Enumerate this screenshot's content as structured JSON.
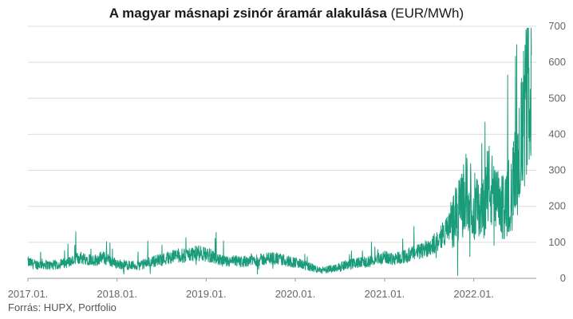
{
  "chart_data": {
    "type": "line",
    "title": "A magyar másnapi zsinór áramár alakulása",
    "title_unit": "(EUR/MWh)",
    "xlabel": "",
    "ylabel": "",
    "x_ticks": [
      "2017.01.",
      "2018.01.",
      "2019.01.",
      "2020.01.",
      "2021.01.",
      "2022.01."
    ],
    "y_ticks": [
      0,
      100,
      200,
      300,
      400,
      500,
      600,
      700
    ],
    "ylim": [
      0,
      700
    ],
    "xlim": [
      "2017-01-01",
      "2022-09-01"
    ],
    "grid": true,
    "legend": "none",
    "series": [
      {
        "color": "#1a9c7a",
        "points": [
          [
            "2017-01-01",
            45
          ],
          [
            "2017-02-01",
            38
          ],
          [
            "2017-03-01",
            40
          ],
          [
            "2017-04-01",
            36
          ],
          [
            "2017-05-01",
            38
          ],
          [
            "2017-06-01",
            42
          ],
          [
            "2017-07-01",
            48
          ],
          [
            "2017-08-01",
            58
          ],
          [
            "2017-09-01",
            55
          ],
          [
            "2017-10-01",
            50
          ],
          [
            "2017-11-01",
            58
          ],
          [
            "2017-12-01",
            50
          ],
          [
            "2018-01-01",
            40
          ],
          [
            "2018-02-01",
            38
          ],
          [
            "2018-03-01",
            36
          ],
          [
            "2018-04-01",
            35
          ],
          [
            "2018-05-01",
            42
          ],
          [
            "2018-06-01",
            48
          ],
          [
            "2018-07-01",
            52
          ],
          [
            "2018-08-01",
            58
          ],
          [
            "2018-09-01",
            64
          ],
          [
            "2018-10-01",
            62
          ],
          [
            "2018-11-01",
            68
          ],
          [
            "2018-12-01",
            70
          ],
          [
            "2019-01-01",
            66
          ],
          [
            "2019-02-01",
            60
          ],
          [
            "2019-03-01",
            48
          ],
          [
            "2019-04-01",
            45
          ],
          [
            "2019-05-01",
            48
          ],
          [
            "2019-06-01",
            46
          ],
          [
            "2019-07-01",
            52
          ],
          [
            "2019-08-01",
            50
          ],
          [
            "2019-09-01",
            54
          ],
          [
            "2019-10-01",
            56
          ],
          [
            "2019-11-01",
            52
          ],
          [
            "2019-12-01",
            48
          ],
          [
            "2020-01-01",
            44
          ],
          [
            "2020-02-01",
            38
          ],
          [
            "2020-03-01",
            32
          ],
          [
            "2020-04-01",
            24
          ],
          [
            "2020-05-01",
            22
          ],
          [
            "2020-06-01",
            28
          ],
          [
            "2020-07-01",
            32
          ],
          [
            "2020-08-01",
            38
          ],
          [
            "2020-09-01",
            42
          ],
          [
            "2020-10-01",
            44
          ],
          [
            "2020-11-01",
            46
          ],
          [
            "2020-12-01",
            54
          ],
          [
            "2021-01-01",
            58
          ],
          [
            "2021-02-01",
            55
          ],
          [
            "2021-03-01",
            58
          ],
          [
            "2021-04-01",
            62
          ],
          [
            "2021-05-01",
            70
          ],
          [
            "2021-06-01",
            76
          ],
          [
            "2021-07-01",
            88
          ],
          [
            "2021-08-01",
            100
          ],
          [
            "2021-09-01",
            125
          ],
          [
            "2021-10-01",
            155
          ],
          [
            "2021-11-01",
            185
          ],
          [
            "2021-12-01",
            240
          ],
          [
            "2022-01-01",
            205
          ],
          [
            "2022-02-01",
            175
          ],
          [
            "2022-03-01",
            265
          ],
          [
            "2022-04-01",
            210
          ],
          [
            "2022-05-01",
            195
          ],
          [
            "2022-06-01",
            225
          ],
          [
            "2022-07-01",
            330
          ],
          [
            "2022-08-01",
            470
          ],
          [
            "2022-08-25",
            620
          ]
        ]
      }
    ]
  },
  "source_text": "Forrás: HUPX, Portfolio"
}
